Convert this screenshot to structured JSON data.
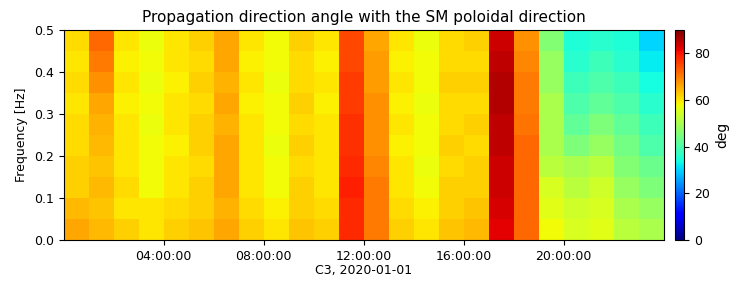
{
  "chart_data": {
    "type": "heatmap",
    "title": "Propagation direction angle with the SM poloidal direction",
    "x_label": "C3, 2020-01-01",
    "y_label": "Frequency [Hz]",
    "x_edges": [
      0,
      1,
      2,
      3,
      4,
      5,
      6,
      7,
      8,
      9,
      10,
      11,
      12,
      13,
      14,
      15,
      16,
      17,
      18,
      19,
      20,
      21,
      22,
      23,
      24
    ],
    "y_edges": [
      0.0,
      0.05,
      0.1,
      0.15,
      0.2,
      0.25,
      0.3,
      0.35,
      0.4,
      0.45,
      0.5
    ],
    "cells": [
      [
        66,
        64,
        62,
        60,
        62,
        63,
        66,
        62,
        60,
        63,
        62,
        78,
        70,
        62,
        60,
        63,
        64,
        82,
        72,
        58,
        55,
        56,
        52,
        50
      ],
      [
        64,
        63,
        60,
        60,
        61,
        62,
        65,
        61,
        59,
        62,
        61,
        78,
        70,
        61,
        59,
        62,
        63,
        83,
        72,
        56,
        54,
        55,
        50,
        48
      ],
      [
        62,
        64,
        61,
        58,
        60,
        62,
        66,
        60,
        58,
        62,
        60,
        79,
        70,
        60,
        58,
        62,
        62,
        84,
        72,
        55,
        52,
        54,
        48,
        45
      ],
      [
        62,
        63,
        60,
        58,
        60,
        61,
        66,
        60,
        58,
        61,
        60,
        78,
        69,
        60,
        57,
        61,
        62,
        84,
        72,
        52,
        50,
        52,
        46,
        43
      ],
      [
        61,
        64,
        60,
        58,
        59,
        62,
        66,
        60,
        57,
        62,
        60,
        77,
        68,
        59,
        58,
        62,
        61,
        85,
        72,
        50,
        45,
        48,
        44,
        40
      ],
      [
        61,
        65,
        60,
        57,
        60,
        62,
        65,
        60,
        58,
        61,
        60,
        77,
        68,
        60,
        58,
        61,
        62,
        85,
        71,
        50,
        42,
        45,
        42,
        38
      ],
      [
        60,
        66,
        59,
        58,
        60,
        61,
        66,
        59,
        58,
        62,
        59,
        76,
        68,
        59,
        57,
        61,
        61,
        86,
        70,
        50,
        40,
        42,
        40,
        36
      ],
      [
        61,
        68,
        60,
        57,
        59,
        62,
        65,
        60,
        57,
        61,
        60,
        76,
        67,
        60,
        58,
        62,
        62,
        86,
        70,
        48,
        38,
        40,
        38,
        34
      ],
      [
        60,
        70,
        59,
        58,
        60,
        61,
        66,
        59,
        58,
        61,
        59,
        75,
        67,
        59,
        58,
        61,
        61,
        85,
        69,
        48,
        36,
        38,
        36,
        32
      ],
      [
        61,
        72,
        60,
        57,
        60,
        62,
        66,
        60,
        58,
        62,
        60,
        75,
        66,
        60,
        57,
        61,
        62,
        84,
        68,
        46,
        35,
        36,
        35,
        30
      ]
    ],
    "xlim": [
      0,
      24
    ],
    "xticks": [
      {
        "value": 4,
        "label": "04:00:00"
      },
      {
        "value": 8,
        "label": "08:00:00"
      },
      {
        "value": 12,
        "label": "12:00:00"
      },
      {
        "value": 16,
        "label": "16:00:00"
      },
      {
        "value": 20,
        "label": "20:00:00"
      }
    ],
    "ylim": [
      0.0,
      0.5
    ],
    "yticks": [
      0.0,
      0.1,
      0.2,
      0.3,
      0.4,
      0.5
    ],
    "colorbar_label": "deg",
    "colorbar_range": [
      0,
      90
    ],
    "colorbar_ticks": [
      0,
      20,
      40,
      60,
      80
    ]
  }
}
